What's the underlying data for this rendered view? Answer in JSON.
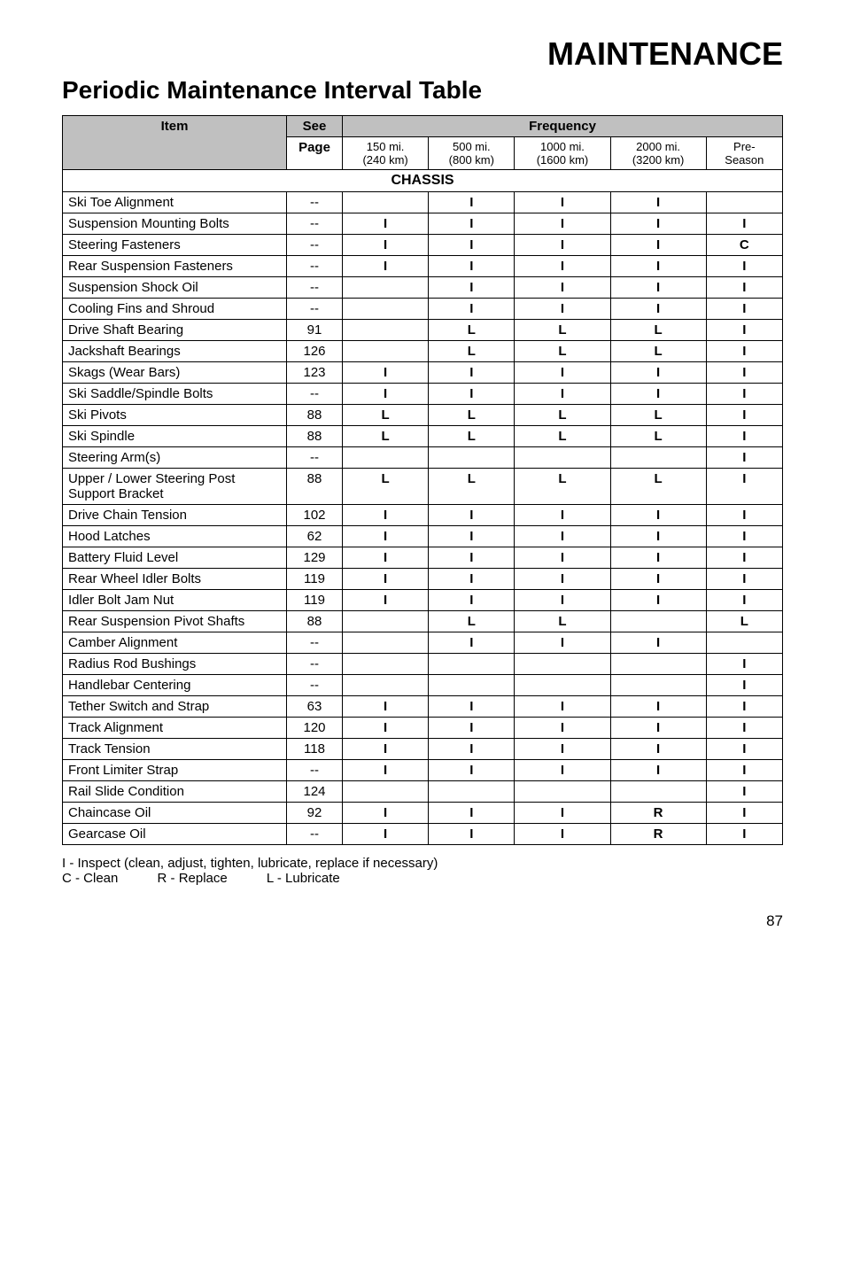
{
  "titles": {
    "main": "MAINTENANCE",
    "sub": "Periodic Maintenance Interval Table"
  },
  "headers": {
    "item": "Item",
    "see_page_line1": "See",
    "see_page_line2": "Page",
    "frequency": "Frequency",
    "f1_l1": "150 mi.",
    "f1_l2": "(240 km)",
    "f2_l1": "500 mi.",
    "f2_l2": "(800 km)",
    "f3_l1": "1000 mi.",
    "f3_l2": "(1600 km)",
    "f4_l1": "2000 mi.",
    "f4_l2": "(3200 km)",
    "f5_l1": "Pre-",
    "f5_l2": "Season"
  },
  "section": "CHASSIS",
  "rows": [
    {
      "item": "Ski Toe Alignment",
      "page": "--",
      "f1": "",
      "f2": "I",
      "f3": "I",
      "f4": "I",
      "f5": ""
    },
    {
      "item": "Suspension Mounting Bolts",
      "page": "--",
      "f1": "I",
      "f2": "I",
      "f3": "I",
      "f4": "I",
      "f5": "I"
    },
    {
      "item": "Steering Fasteners",
      "page": "--",
      "f1": "I",
      "f2": "I",
      "f3": "I",
      "f4": "I",
      "f5": "C"
    },
    {
      "item": "Rear Suspension Fasteners",
      "page": "--",
      "f1": "I",
      "f2": "I",
      "f3": "I",
      "f4": "I",
      "f5": "I"
    },
    {
      "item": "Suspension Shock Oil",
      "page": "--",
      "f1": "",
      "f2": "I",
      "f3": "I",
      "f4": "I",
      "f5": "I"
    },
    {
      "item": "Cooling Fins and Shroud",
      "page": "--",
      "f1": "",
      "f2": "I",
      "f3": "I",
      "f4": "I",
      "f5": "I"
    },
    {
      "item": "Drive Shaft Bearing",
      "page": "91",
      "f1": "",
      "f2": "L",
      "f3": "L",
      "f4": "L",
      "f5": "I"
    },
    {
      "item": "Jackshaft Bearings",
      "page": "126",
      "f1": "",
      "f2": "L",
      "f3": "L",
      "f4": "L",
      "f5": "I"
    },
    {
      "item": "Skags (Wear Bars)",
      "page": "123",
      "f1": "I",
      "f2": "I",
      "f3": "I",
      "f4": "I",
      "f5": "I"
    },
    {
      "item": "Ski Saddle/Spindle Bolts",
      "page": "--",
      "f1": "I",
      "f2": "I",
      "f3": "I",
      "f4": "I",
      "f5": "I"
    },
    {
      "item": "Ski Pivots",
      "page": "88",
      "f1": "L",
      "f2": "L",
      "f3": "L",
      "f4": "L",
      "f5": "I"
    },
    {
      "item": "Ski Spindle",
      "page": "88",
      "f1": "L",
      "f2": "L",
      "f3": "L",
      "f4": "L",
      "f5": "I"
    },
    {
      "item": "Steering Arm(s)",
      "page": "--",
      "f1": "",
      "f2": "",
      "f3": "",
      "f4": "",
      "f5": "I"
    },
    {
      "item": "Upper / Lower Steering Post Support Bracket",
      "page": "88",
      "f1": "L",
      "f2": "L",
      "f3": "L",
      "f4": "L",
      "f5": "I"
    },
    {
      "item": "Drive Chain Tension",
      "page": "102",
      "f1": "I",
      "f2": "I",
      "f3": "I",
      "f4": "I",
      "f5": "I"
    },
    {
      "item": "Hood Latches",
      "page": "62",
      "f1": "I",
      "f2": "I",
      "f3": "I",
      "f4": "I",
      "f5": "I"
    },
    {
      "item": "Battery Fluid Level",
      "page": "129",
      "f1": "I",
      "f2": "I",
      "f3": "I",
      "f4": "I",
      "f5": "I"
    },
    {
      "item": "Rear Wheel Idler Bolts",
      "page": "119",
      "f1": "I",
      "f2": "I",
      "f3": "I",
      "f4": "I",
      "f5": "I"
    },
    {
      "item": "Idler Bolt Jam Nut",
      "page": "119",
      "f1": "I",
      "f2": "I",
      "f3": "I",
      "f4": "I",
      "f5": "I"
    },
    {
      "item": "Rear Suspension Pivot Shafts",
      "page": "88",
      "f1": "",
      "f2": "L",
      "f3": "L",
      "f4": "",
      "f5": "L"
    },
    {
      "item": "Camber Alignment",
      "page": "--",
      "f1": "",
      "f2": "I",
      "f3": "I",
      "f4": "I",
      "f5": ""
    },
    {
      "item": "Radius Rod Bushings",
      "page": "--",
      "f1": "",
      "f2": "",
      "f3": "",
      "f4": "",
      "f5": "I"
    },
    {
      "item": "Handlebar Centering",
      "page": "--",
      "f1": "",
      "f2": "",
      "f3": "",
      "f4": "",
      "f5": "I"
    },
    {
      "item": "Tether Switch and Strap",
      "page": "63",
      "f1": "I",
      "f2": "I",
      "f3": "I",
      "f4": "I",
      "f5": "I"
    },
    {
      "item": "Track Alignment",
      "page": "120",
      "f1": "I",
      "f2": "I",
      "f3": "I",
      "f4": "I",
      "f5": "I"
    },
    {
      "item": "Track Tension",
      "page": "118",
      "f1": "I",
      "f2": "I",
      "f3": "I",
      "f4": "I",
      "f5": "I"
    },
    {
      "item": "Front Limiter Strap",
      "page": "--",
      "f1": "I",
      "f2": "I",
      "f3": "I",
      "f4": "I",
      "f5": "I"
    },
    {
      "item": "Rail Slide Condition",
      "page": "124",
      "f1": "",
      "f2": "",
      "f3": "",
      "f4": "",
      "f5": "I"
    },
    {
      "item": "Chaincase Oil",
      "page": "92",
      "f1": "I",
      "f2": "I",
      "f3": "I",
      "f4": "R",
      "f5": "I"
    },
    {
      "item": "Gearcase Oil",
      "page": "--",
      "f1": "I",
      "f2": "I",
      "f3": "I",
      "f4": "R",
      "f5": "I"
    }
  ],
  "legend": {
    "line1": "I - Inspect (clean, adjust, tighten, lubricate, replace if necessary)",
    "c": "C - Clean",
    "r": "R - Replace",
    "l": "L - Lubricate"
  },
  "page_number": "87"
}
